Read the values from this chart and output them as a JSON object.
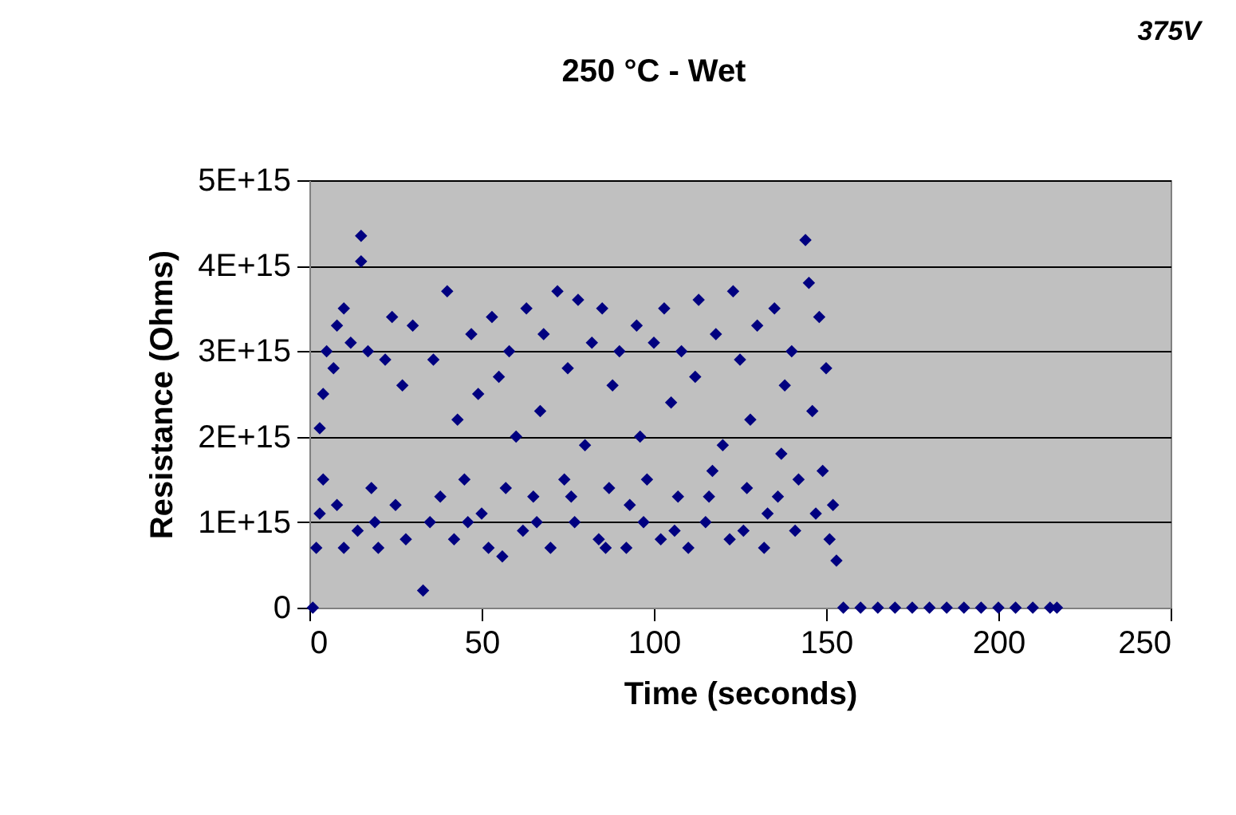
{
  "chart_data": {
    "type": "scatter",
    "title": "250 °C - Wet",
    "xlabel": "Time (seconds)",
    "ylabel": "Resistance (Ohms)",
    "annotations": [
      "375V"
    ],
    "xlim": [
      0,
      250
    ],
    "xticks": [
      0,
      50,
      100,
      150,
      200,
      250
    ],
    "ylim": [
      0,
      5000000000000000.0
    ],
    "yticks": [
      0,
      {
        "value": 1000000000000000.0,
        "label": "1E+15"
      },
      {
        "value": 2000000000000000.0,
        "label": "2E+15"
      },
      {
        "value": 3000000000000000.0,
        "label": "3E+15"
      },
      {
        "value": 4000000000000000.0,
        "label": "4E+15"
      },
      {
        "value": 5000000000000000.0,
        "label": "5E+15"
      }
    ],
    "grid": "y",
    "marker": "diamond",
    "series": [
      {
        "color": "#000080",
        "x": [
          1,
          2,
          3,
          4,
          3,
          4,
          5,
          7,
          8,
          10,
          12,
          14,
          15,
          15,
          17,
          18,
          20,
          22,
          24,
          25,
          27,
          30,
          33,
          35,
          36,
          40,
          42,
          43,
          45,
          47,
          49,
          50,
          52,
          53,
          55,
          57,
          58,
          60,
          62,
          63,
          65,
          67,
          68,
          70,
          72,
          74,
          75,
          77,
          78,
          80,
          82,
          84,
          85,
          87,
          88,
          90,
          92,
          93,
          95,
          96,
          98,
          100,
          102,
          103,
          105,
          107,
          108,
          110,
          112,
          113,
          115,
          117,
          118,
          120,
          122,
          123,
          125,
          127,
          128,
          130,
          132,
          133,
          135,
          137,
          138,
          140,
          141,
          142,
          144,
          145,
          146,
          147,
          148,
          149,
          150,
          151,
          152,
          153,
          10,
          28,
          38,
          46,
          56,
          66,
          76,
          86,
          97,
          106,
          116,
          126,
          136,
          8,
          19,
          155,
          160,
          165,
          170,
          175,
          180,
          185,
          190,
          195,
          200,
          205,
          210,
          215,
          217
        ],
        "values": [
          0,
          700000000000000.0,
          1100000000000000.0,
          1500000000000000.0,
          2100000000000000.0,
          2500000000000000.0,
          3000000000000000.0,
          2800000000000000.0,
          3300000000000000.0,
          3500000000000000.0,
          3100000000000000.0,
          900000000000000.0,
          4350000000000000.0,
          4050000000000000.0,
          3000000000000000.0,
          1400000000000000.0,
          700000000000000.0,
          2900000000000000.0,
          3400000000000000.0,
          1200000000000000.0,
          2600000000000000.0,
          3300000000000000.0,
          200000000000000.0,
          1000000000000000.0,
          2900000000000000.0,
          3700000000000000.0,
          800000000000000.0,
          2200000000000000.0,
          1500000000000000.0,
          3200000000000000.0,
          2500000000000000.0,
          1100000000000000.0,
          700000000000000.0,
          3400000000000000.0,
          2700000000000000.0,
          1400000000000000.0,
          3000000000000000.0,
          2000000000000000.0,
          900000000000000.0,
          3500000000000000.0,
          1300000000000000.0,
          2300000000000000.0,
          3200000000000000.0,
          700000000000000.0,
          3700000000000000.0,
          1500000000000000.0,
          2800000000000000.0,
          1000000000000000.0,
          3600000000000000.0,
          1900000000000000.0,
          3100000000000000.0,
          800000000000000.0,
          3500000000000000.0,
          1400000000000000.0,
          2600000000000000.0,
          3000000000000000.0,
          700000000000000.0,
          1200000000000000.0,
          3300000000000000.0,
          2000000000000000.0,
          1500000000000000.0,
          3100000000000000.0,
          800000000000000.0,
          3500000000000000.0,
          2400000000000000.0,
          1300000000000000.0,
          3000000000000000.0,
          700000000000000.0,
          2700000000000000.0,
          3600000000000000.0,
          1000000000000000.0,
          1600000000000000.0,
          3200000000000000.0,
          1900000000000000.0,
          800000000000000.0,
          3700000000000000.0,
          2900000000000000.0,
          1400000000000000.0,
          2200000000000000.0,
          3300000000000000.0,
          700000000000000.0,
          1100000000000000.0,
          3500000000000000.0,
          1800000000000000.0,
          2600000000000000.0,
          3000000000000000.0,
          900000000000000.0,
          1500000000000000.0,
          4300000000000000.0,
          3800000000000000.0,
          2300000000000000.0,
          1100000000000000.0,
          3400000000000000.0,
          1600000000000000.0,
          2800000000000000.0,
          800000000000000.0,
          1200000000000000.0,
          550000000000000.0,
          700000000000000.0,
          800000000000000.0,
          1300000000000000.0,
          1000000000000000.0,
          600000000000000.0,
          1000000000000000.0,
          1300000000000000.0,
          700000000000000.0,
          1000000000000000.0,
          900000000000000.0,
          1300000000000000.0,
          900000000000000.0,
          1300000000000000.0,
          1200000000000000.0,
          1000000000000000.0,
          0,
          0,
          0,
          0,
          0,
          0,
          0,
          0,
          0,
          0,
          0,
          0,
          0,
          0
        ]
      }
    ]
  }
}
